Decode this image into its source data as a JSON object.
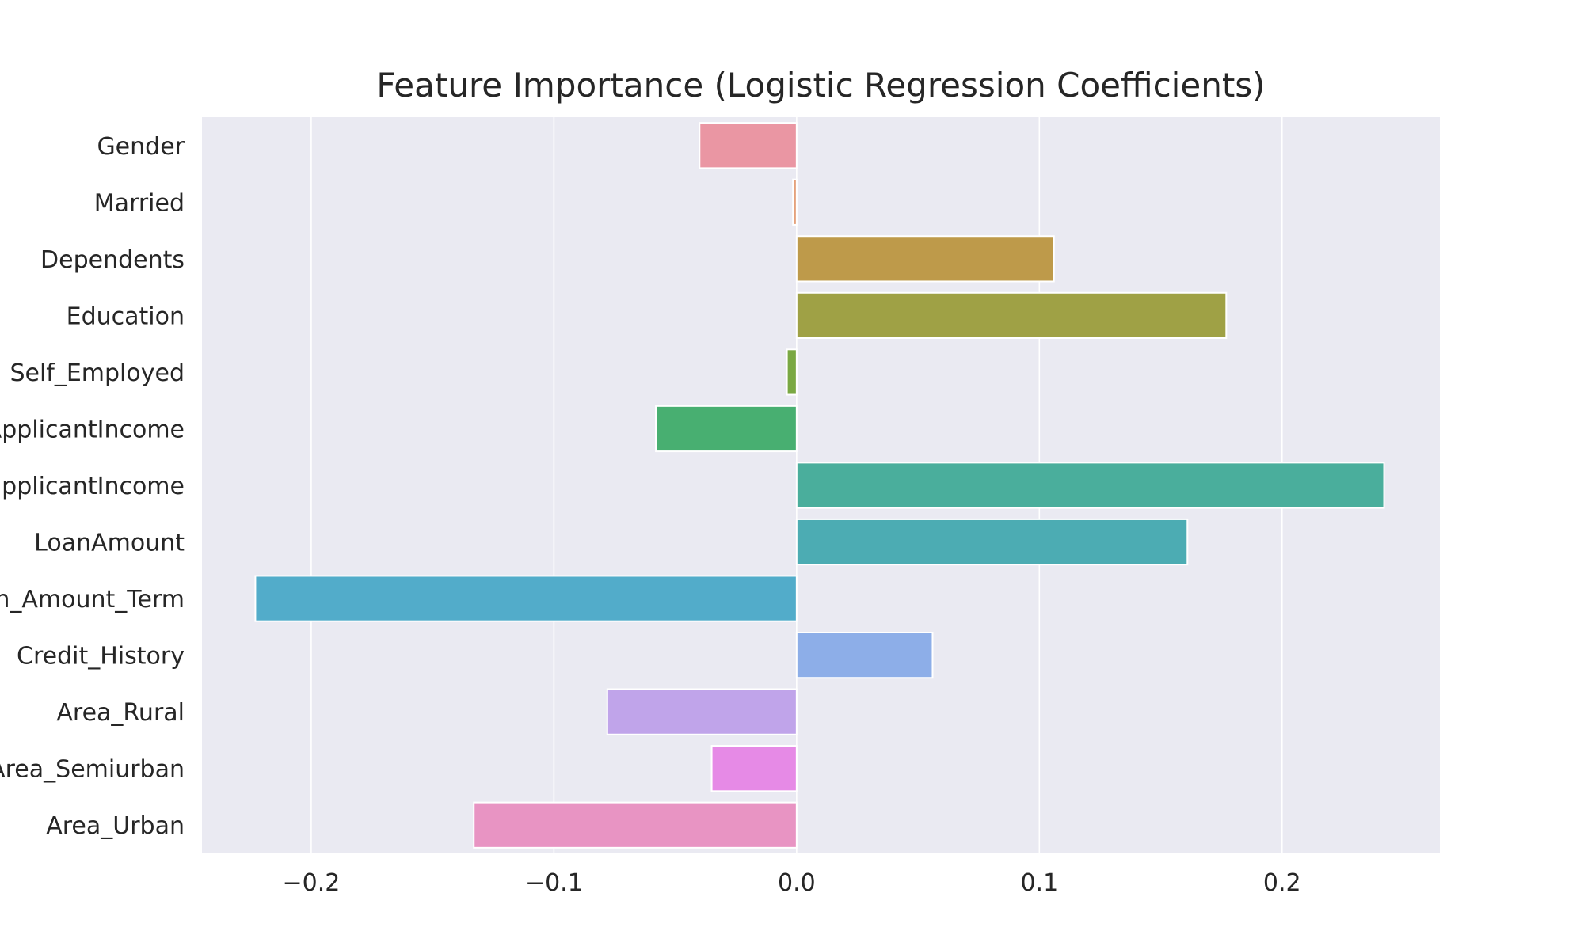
{
  "chart_data": {
    "type": "bar",
    "orientation": "horizontal",
    "title": "Feature Importance (Logistic Regression Coefficients)",
    "xlabel": "",
    "ylabel": "",
    "xlim": [
      -0.245,
      0.265
    ],
    "xticks": [
      -0.2,
      -0.1,
      0.0,
      0.1,
      0.2
    ],
    "xtick_labels": [
      "−0.2",
      "−0.1",
      "0.0",
      "0.1",
      "0.2"
    ],
    "grid": true,
    "legend": "none",
    "background_color": "#eaeaf2",
    "categories": [
      "Gender",
      "Married",
      "Dependents",
      "Education",
      "Self_Employed",
      "ApplicantIncome",
      "CoapplicantIncome",
      "LoanAmount",
      "Loan_Amount_Term",
      "Credit_History",
      "Area_Rural",
      "Area_Semiurban",
      "Area_Urban"
    ],
    "values": [
      -0.04,
      -0.0015,
      0.106,
      0.177,
      -0.004,
      -0.058,
      0.242,
      0.161,
      -0.223,
      0.056,
      -0.078,
      -0.035,
      -0.133
    ],
    "colors": [
      "#ea96a3",
      "#e5a17b",
      "#be9a4a",
      "#9fa145",
      "#7aa843",
      "#48af71",
      "#4aae9c",
      "#4cacb3",
      "#52acca",
      "#8daee8",
      "#c0a4ea",
      "#e68ae6",
      "#e894c3"
    ]
  }
}
